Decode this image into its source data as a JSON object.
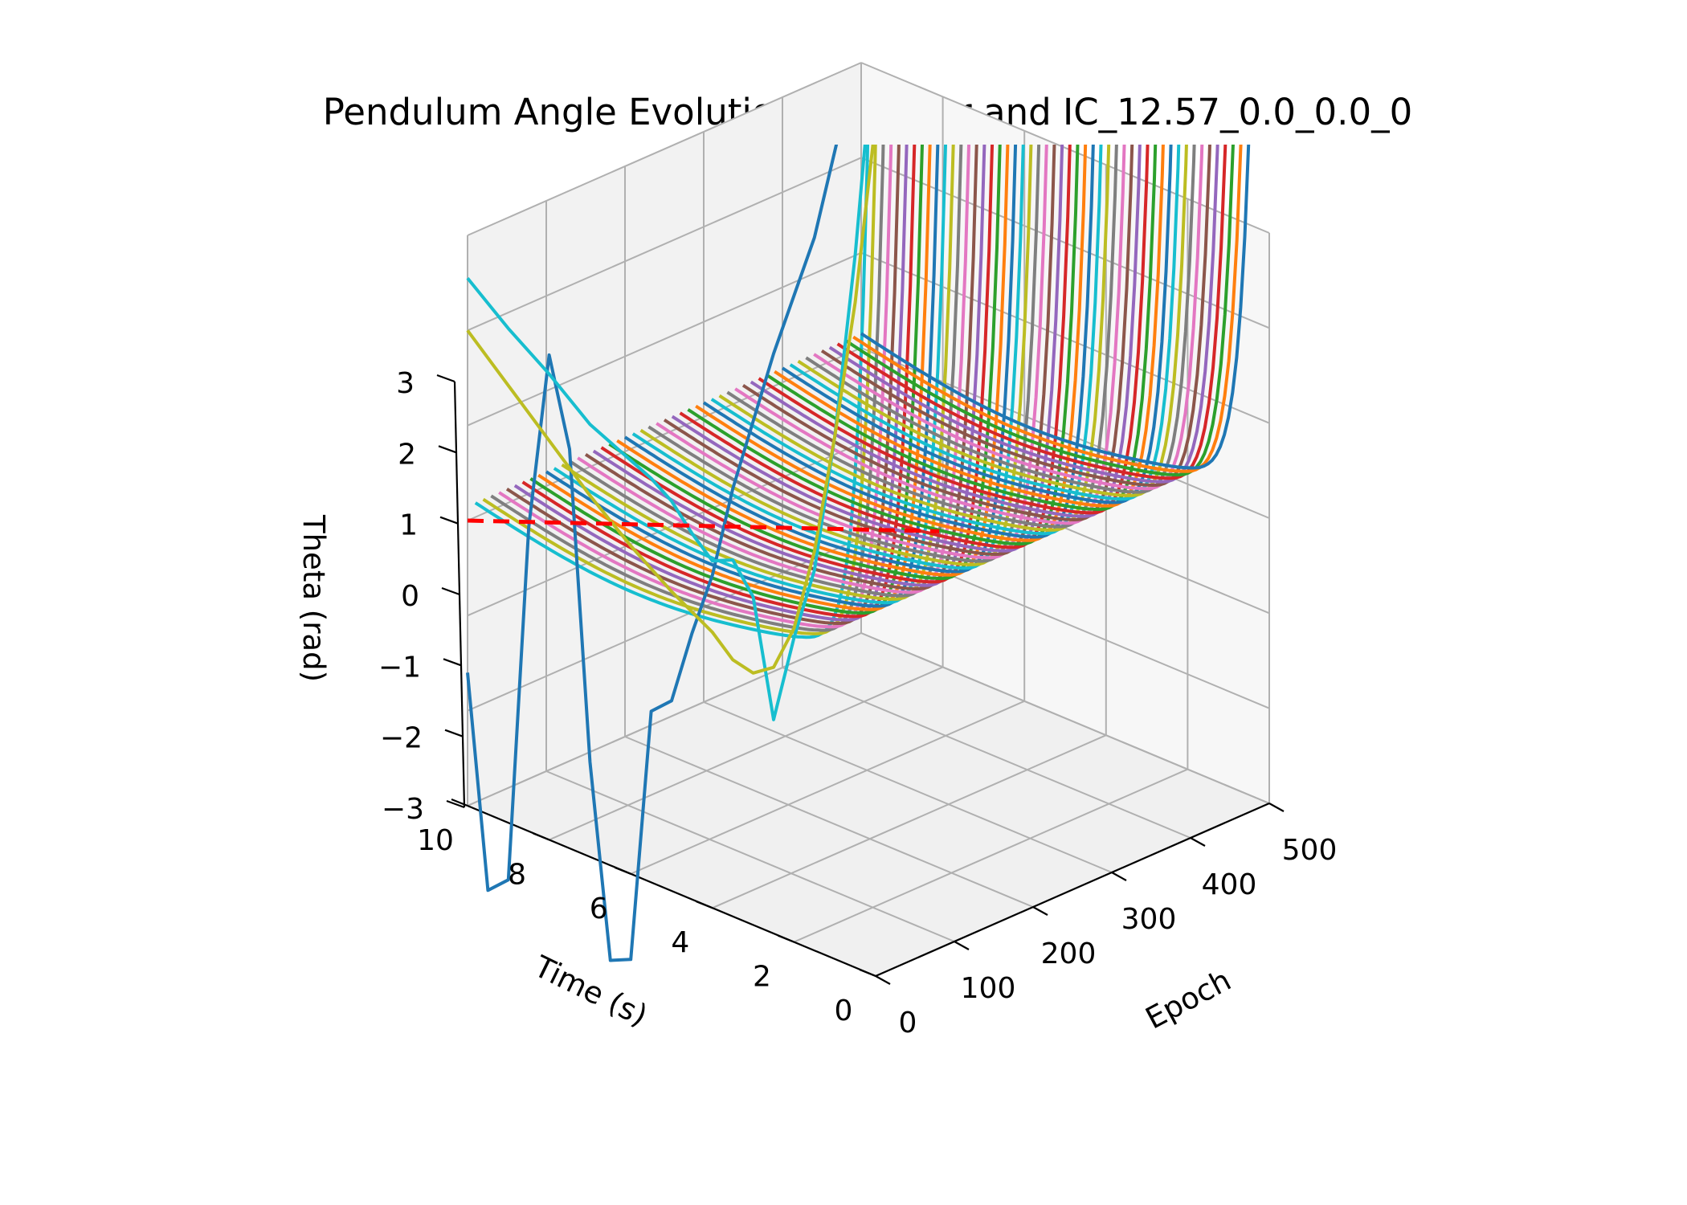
{
  "chart_data": {
    "type": "line",
    "projection": "3d",
    "title": "Pendulum Angle Evolution for linear and IC_12.57_0.0_0.0_0",
    "xlabel": "Epoch",
    "ylabel": "Time (s)",
    "zlabel": "Theta (rad)",
    "xlim": [
      0,
      500
    ],
    "ylim": [
      0,
      10
    ],
    "zlim": [
      -3,
      3
    ],
    "x_ticks": [
      "0",
      "100",
      "200",
      "300",
      "400",
      "500"
    ],
    "y_ticks": [
      "0",
      "2",
      "4",
      "6",
      "8",
      "10"
    ],
    "z_ticks": [
      "−3",
      "−2",
      "−1",
      "0",
      "1",
      "2",
      "3"
    ],
    "grid": true,
    "palette": [
      "#1f77b4",
      "#ff7f0e",
      "#2ca02c",
      "#d62728",
      "#9467bd",
      "#8c564b",
      "#e377c2",
      "#7f7f7f",
      "#bcbd22",
      "#17becf"
    ],
    "reference_line": {
      "style": "dashed",
      "color": "#ff0000",
      "epoch": 0,
      "theta": 0,
      "time": [
        0,
        10
      ]
    },
    "epoch_family": {
      "epochs_from": 10,
      "epochs_to": 500,
      "count": 50,
      "theta_at_t0": 0.15,
      "theta_at_t10": 0.15,
      "theta_min": -0.1,
      "growth_near_t0": "rises steeply above 3 rad"
    },
    "series": [
      {
        "epoch": 0,
        "color": "#1f77b4",
        "time": [
          10,
          9.5,
          9,
          8.5,
          8,
          7.5,
          7,
          6.5,
          6,
          5.5,
          5,
          4.5,
          4,
          3.5,
          3,
          2.5,
          2,
          1.5,
          1,
          0.5,
          0
        ],
        "theta": [
          -1.6,
          -3.8,
          -3.6,
          0.2,
          2.1,
          1.2,
          -2.0,
          -4.0,
          -3.9,
          -1.2,
          -1.0,
          -0.2,
          0.5,
          1.5,
          2.3,
          3.1,
          3.8,
          4.5,
          5.5,
          6.5,
          7.5
        ]
      },
      {
        "epoch": 0,
        "color": "#17becf",
        "time": [
          10,
          9,
          8,
          7,
          6,
          5.5,
          5,
          4.5,
          4,
          3.5,
          3,
          2.5,
          2,
          1.5,
          1,
          0.5,
          0
        ],
        "theta": [
          2.55,
          2.2,
          1.9,
          1.55,
          1.35,
          1.25,
          1.1,
          0.85,
          0.65,
          0.75,
          0.45,
          -0.75,
          0.2,
          1.0,
          2.5,
          4.5,
          7.0
        ]
      },
      {
        "epoch": 0,
        "color": "#bcbd22",
        "time": [
          10,
          9,
          8,
          7,
          6,
          5,
          4,
          3.5,
          3,
          2.5,
          2,
          1.5,
          1,
          0.5,
          0
        ],
        "theta": [
          2.0,
          1.6,
          1.2,
          0.8,
          0.45,
          0.15,
          -0.1,
          -0.3,
          -0.35,
          -0.2,
          0.3,
          1.2,
          2.5,
          4.0,
          6.0
        ]
      }
    ]
  }
}
